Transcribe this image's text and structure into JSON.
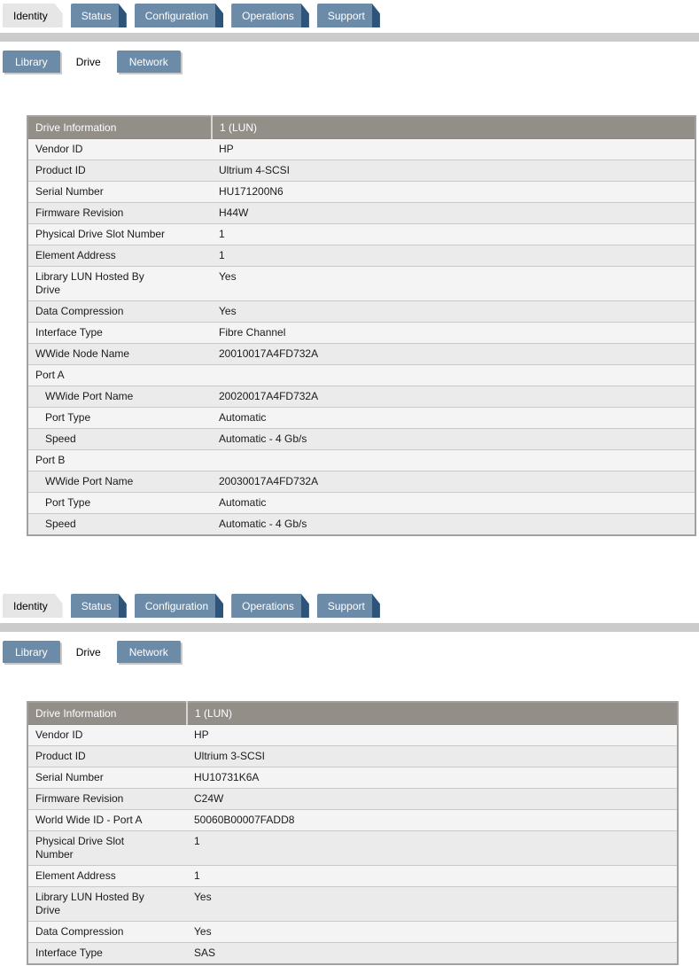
{
  "colors": {
    "tab_blue": "#6C8BA8",
    "tab_edge": "#2F547A",
    "tab_active_bg": "#E6E6E6",
    "tab_text": "#FFFFFF",
    "separator_bar": "#CBCBCB",
    "header_bg": "#948E88",
    "header_divider": "#D8D5D1",
    "row_odd": "#F4F4F4",
    "row_even": "#EBEBEB",
    "row_divider": "#C9C9C9",
    "border": "#A5A09B",
    "subtab_shadow": "#C9C9C9",
    "text": "#1A1A1A"
  },
  "panels": [
    {
      "tabs": [
        {
          "label": "Identity",
          "active": true
        },
        {
          "label": "Status",
          "active": false
        },
        {
          "label": "Configuration",
          "active": false
        },
        {
          "label": "Operations",
          "active": false
        },
        {
          "label": "Support",
          "active": false
        }
      ],
      "subtabs": [
        {
          "label": "Library",
          "active": false
        },
        {
          "label": "Drive",
          "active": true
        },
        {
          "label": "Network",
          "active": false
        }
      ],
      "table": {
        "header": [
          "Drive Information",
          "1 (LUN)"
        ],
        "rows": [
          {
            "label": "Vendor ID",
            "value": "HP"
          },
          {
            "label": "Product ID",
            "value": "Ultrium 4-SCSI"
          },
          {
            "label": "Serial Number",
            "value": "HU171200N6"
          },
          {
            "label": "Firmware Revision",
            "value": "H44W"
          },
          {
            "label": "Physical Drive Slot Number",
            "value": "1"
          },
          {
            "label": "Element Address",
            "value": "1"
          },
          {
            "label": "Library LUN Hosted By\nDrive",
            "value": "Yes"
          },
          {
            "label": "Data Compression",
            "value": "Yes"
          },
          {
            "label": "Interface Type",
            "value": "Fibre Channel"
          },
          {
            "label": "WWide Node Name",
            "value": "20010017A4FD732A"
          },
          {
            "label": "Port A",
            "value": "",
            "section": true
          },
          {
            "label": "WWide Port Name",
            "value": "20020017A4FD732A",
            "indent": true
          },
          {
            "label": "Port Type",
            "value": "Automatic",
            "indent": true
          },
          {
            "label": "Speed",
            "value": "Automatic - 4 Gb/s",
            "indent": true
          },
          {
            "label": "Port B",
            "value": "",
            "section": true
          },
          {
            "label": "WWide Port Name",
            "value": "20030017A4FD732A",
            "indent": true
          },
          {
            "label": "Port Type",
            "value": "Automatic",
            "indent": true
          },
          {
            "label": "Speed",
            "value": "Automatic - 4 Gb/s",
            "indent": true
          }
        ]
      }
    },
    {
      "tabs": [
        {
          "label": "Identity",
          "active": true
        },
        {
          "label": "Status",
          "active": false
        },
        {
          "label": "Configuration",
          "active": false
        },
        {
          "label": "Operations",
          "active": false
        },
        {
          "label": "Support",
          "active": false
        }
      ],
      "subtabs": [
        {
          "label": "Library",
          "active": false
        },
        {
          "label": "Drive",
          "active": true
        },
        {
          "label": "Network",
          "active": false
        }
      ],
      "table": {
        "header": [
          "Drive Information",
          "1 (LUN)"
        ],
        "rows": [
          {
            "label": "Vendor ID",
            "value": "HP"
          },
          {
            "label": "Product ID",
            "value": "Ultrium 3-SCSI"
          },
          {
            "label": "Serial Number",
            "value": "HU10731K6A"
          },
          {
            "label": "Firmware Revision",
            "value": "C24W"
          },
          {
            "label": "World Wide ID - Port A",
            "value": "50060B00007FADD8"
          },
          {
            "label": "Physical Drive Slot\nNumber",
            "value": "1"
          },
          {
            "label": "Element Address",
            "value": "1"
          },
          {
            "label": "Library LUN Hosted By\nDrive",
            "value": "Yes"
          },
          {
            "label": "Data Compression",
            "value": "Yes"
          },
          {
            "label": "Interface Type",
            "value": "SAS"
          }
        ]
      }
    }
  ]
}
